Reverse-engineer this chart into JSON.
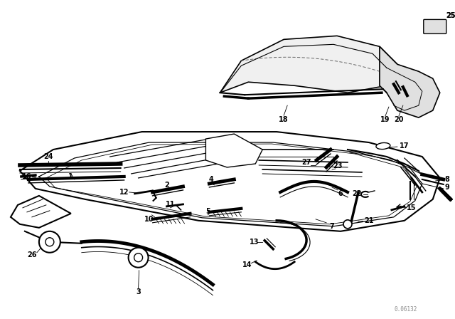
{
  "bg_color": "#ffffff",
  "line_color": "#000000",
  "fig_width": 6.4,
  "fig_height": 4.48,
  "dpi": 100,
  "watermark": "0.06132"
}
